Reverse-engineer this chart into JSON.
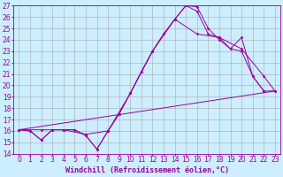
{
  "xlabel": "Windchill (Refroidissement éolien,°C)",
  "background_color": "#cceeff",
  "line_color": "#990099",
  "grid_color": "#aaaaaa",
  "xlim": [
    -0.5,
    23.5
  ],
  "ylim": [
    14,
    27
  ],
  "xticks": [
    0,
    1,
    2,
    3,
    4,
    5,
    6,
    7,
    8,
    9,
    10,
    11,
    12,
    13,
    14,
    15,
    16,
    17,
    18,
    19,
    20,
    21,
    22,
    23
  ],
  "yticks": [
    14,
    15,
    16,
    17,
    18,
    19,
    20,
    21,
    22,
    23,
    24,
    25,
    26,
    27
  ],
  "line1_x": [
    0,
    1,
    2,
    3,
    4,
    5,
    6,
    7,
    8,
    9,
    10,
    11,
    12,
    13,
    14,
    15,
    16,
    17,
    18,
    19,
    20,
    21,
    22
  ],
  "line1_y": [
    16.1,
    16.0,
    15.2,
    16.1,
    16.1,
    16.1,
    15.6,
    14.4,
    16.0,
    17.5,
    19.3,
    21.2,
    23.0,
    24.5,
    25.8,
    27.0,
    26.9,
    25.0,
    24.0,
    23.2,
    23.0,
    20.8,
    19.5
  ],
  "line2_x": [
    0,
    1,
    2,
    3,
    4,
    5,
    6,
    7,
    8,
    9,
    10,
    11,
    12,
    13,
    14,
    15,
    16,
    17,
    18,
    19,
    20,
    21,
    22,
    23
  ],
  "line2_y": [
    16.1,
    16.0,
    15.2,
    16.1,
    16.1,
    16.1,
    15.6,
    14.4,
    16.0,
    17.5,
    19.3,
    21.2,
    23.0,
    24.5,
    25.8,
    27.0,
    26.5,
    24.5,
    24.2,
    23.2,
    24.2,
    20.8,
    19.5,
    19.5
  ],
  "line3_x": [
    0,
    2,
    4,
    6,
    8,
    10,
    12,
    14,
    16,
    18,
    20,
    22,
    23
  ],
  "line3_y": [
    16.1,
    16.1,
    16.1,
    15.7,
    16.0,
    19.3,
    23.0,
    25.8,
    24.5,
    24.2,
    23.2,
    20.8,
    19.5
  ],
  "line4_x": [
    0,
    23
  ],
  "line4_y": [
    16.1,
    19.5
  ],
  "font_size_label": 6,
  "font_size_tick": 5.5
}
